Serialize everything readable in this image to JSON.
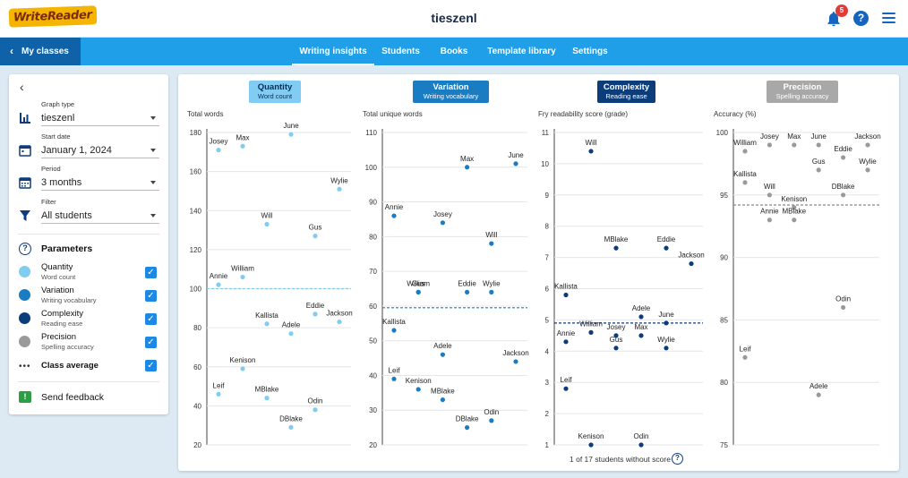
{
  "app": {
    "logo_text": "WriteReader",
    "class_title": "tieszenl",
    "notification_count": "5"
  },
  "nav": {
    "back_label": "My classes",
    "tabs": [
      "Writing insights",
      "Students",
      "Books",
      "Template library",
      "Settings"
    ],
    "active_tab": "Writing insights"
  },
  "sidebar": {
    "graph_type_label": "Graph type",
    "graph_type_value": "tieszenl",
    "start_date_label": "Start date",
    "start_date_value": "January 1, 2024",
    "period_label": "Period",
    "period_value": "3 months",
    "filter_label": "Filter",
    "filter_value": "All students",
    "parameters_title": "Parameters",
    "parameters": [
      {
        "name": "Quantity",
        "sub": "Word count",
        "color": "#80ccf2",
        "checked": true
      },
      {
        "name": "Variation",
        "sub": "Writing vocabulary",
        "color": "#1a7cc2",
        "checked": true
      },
      {
        "name": "Complexity",
        "sub": "Reading ease",
        "color": "#0c3c7a",
        "checked": true
      },
      {
        "name": "Precision",
        "sub": "Spelling accuracy",
        "color": "#9a9a9a",
        "checked": true
      }
    ],
    "class_average_label": "Class average",
    "feedback_label": "Send feedback"
  },
  "metrics": [
    {
      "title": "Quantity",
      "sub": "Word count",
      "bg": "#80ccf2",
      "fg": "#0c2e55"
    },
    {
      "title": "Variation",
      "sub": "Writing vocabulary",
      "bg": "#1a7cc2",
      "fg": "#ffffff"
    },
    {
      "title": "Complexity",
      "sub": "Reading ease",
      "bg": "#0c3c7a",
      "fg": "#ffffff"
    },
    {
      "title": "Precision",
      "sub": "Spelling accuracy",
      "bg": "#a8a8a8",
      "fg": "#ffffff"
    }
  ],
  "chart_data": [
    {
      "type": "scatter",
      "title": "Quantity",
      "ylabel": "Total words",
      "ylim": [
        20,
        180
      ],
      "yticks": [
        20,
        40,
        60,
        80,
        100,
        120,
        140,
        160,
        180
      ],
      "class_average": 100,
      "color": "#80ccf2",
      "avg_color": "#80ccf2",
      "points": [
        {
          "name": "Josey",
          "x": 1,
          "y": 171
        },
        {
          "name": "Max",
          "x": 2,
          "y": 173
        },
        {
          "name": "June",
          "x": 4,
          "y": 179
        },
        {
          "name": "Wylie",
          "x": 6,
          "y": 151
        },
        {
          "name": "Will",
          "x": 3,
          "y": 133
        },
        {
          "name": "Gus",
          "x": 5,
          "y": 127
        },
        {
          "name": "Annie",
          "x": 1,
          "y": 102
        },
        {
          "name": "William",
          "x": 2,
          "y": 106
        },
        {
          "name": "Eddie",
          "x": 5,
          "y": 87
        },
        {
          "name": "Jackson",
          "x": 6,
          "y": 83
        },
        {
          "name": "Kallista",
          "x": 3,
          "y": 82
        },
        {
          "name": "Adele",
          "x": 4,
          "y": 77
        },
        {
          "name": "Kenison",
          "x": 2,
          "y": 59
        },
        {
          "name": "Leif",
          "x": 1,
          "y": 46
        },
        {
          "name": "MBlake",
          "x": 3,
          "y": 44
        },
        {
          "name": "Odin",
          "x": 5,
          "y": 38
        },
        {
          "name": "DBlake",
          "x": 4,
          "y": 29
        }
      ]
    },
    {
      "type": "scatter",
      "title": "Variation",
      "ylabel": "Total unique words",
      "ylim": [
        20,
        110
      ],
      "yticks": [
        20,
        30,
        40,
        50,
        60,
        70,
        80,
        90,
        100,
        110
      ],
      "class_average": 59.5,
      "color": "#1a7cc2",
      "avg_color": "#1a7cc2",
      "points": [
        {
          "name": "June",
          "x": 6,
          "y": 101
        },
        {
          "name": "Max",
          "x": 4,
          "y": 100
        },
        {
          "name": "Annie",
          "x": 1,
          "y": 86
        },
        {
          "name": "Josey",
          "x": 3,
          "y": 84
        },
        {
          "name": "Will",
          "x": 5,
          "y": 78
        },
        {
          "name": "William",
          "x": 2,
          "y": 64
        },
        {
          "name": "Gus",
          "x": 2,
          "y": 64
        },
        {
          "name": "Eddie",
          "x": 4,
          "y": 64
        },
        {
          "name": "Wylie",
          "x": 5,
          "y": 64
        },
        {
          "name": "Kallista",
          "x": 1,
          "y": 53
        },
        {
          "name": "Adele",
          "x": 3,
          "y": 46
        },
        {
          "name": "Jackson",
          "x": 6,
          "y": 44
        },
        {
          "name": "Leif",
          "x": 1,
          "y": 39
        },
        {
          "name": "Kenison",
          "x": 2,
          "y": 36
        },
        {
          "name": "MBlake",
          "x": 3,
          "y": 33
        },
        {
          "name": "Odin",
          "x": 5,
          "y": 27
        },
        {
          "name": "DBlake",
          "x": 4,
          "y": 25
        }
      ]
    },
    {
      "type": "scatter",
      "title": "Complexity",
      "ylabel": "Fry readability score (grade)",
      "ylim": [
        1,
        11
      ],
      "yticks": [
        1,
        2,
        3,
        4,
        5,
        6,
        7,
        8,
        9,
        10,
        11
      ],
      "class_average": 4.9,
      "color": "#0c3c7a",
      "avg_color": "#0c3c7a",
      "footnote": "1 of 17 students without score",
      "points": [
        {
          "name": "Will",
          "x": 2,
          "y": 10.4
        },
        {
          "name": "MBlake",
          "x": 3,
          "y": 7.3
        },
        {
          "name": "Eddie",
          "x": 5,
          "y": 7.3
        },
        {
          "name": "Jackson",
          "x": 6,
          "y": 6.8
        },
        {
          "name": "Kallista",
          "x": 1,
          "y": 5.8
        },
        {
          "name": "Adele",
          "x": 4,
          "y": 5.1
        },
        {
          "name": "June",
          "x": 5,
          "y": 4.9
        },
        {
          "name": "William",
          "x": 2,
          "y": 4.6
        },
        {
          "name": "Josey",
          "x": 3,
          "y": 4.5
        },
        {
          "name": "Max",
          "x": 4,
          "y": 4.5
        },
        {
          "name": "Annie",
          "x": 1,
          "y": 4.3
        },
        {
          "name": "Gus",
          "x": 3,
          "y": 4.1
        },
        {
          "name": "Wylie",
          "x": 5,
          "y": 4.1
        },
        {
          "name": "Leif",
          "x": 1,
          "y": 2.8
        },
        {
          "name": "Kenison",
          "x": 2,
          "y": 1
        },
        {
          "name": "Odin",
          "x": 4,
          "y": 1
        }
      ]
    },
    {
      "type": "scatter",
      "title": "Precision",
      "ylabel": "Accuracy (%)",
      "ylim": [
        75,
        100
      ],
      "yticks": [
        75,
        80,
        85,
        90,
        95,
        100
      ],
      "class_average": 94.2,
      "color": "#9a9a9a",
      "avg_color": "#888888",
      "points": [
        {
          "name": "Josey",
          "x": 2,
          "y": 99
        },
        {
          "name": "Max",
          "x": 3,
          "y": 99
        },
        {
          "name": "June",
          "x": 4,
          "y": 99
        },
        {
          "name": "Jackson",
          "x": 6,
          "y": 99
        },
        {
          "name": "William",
          "x": 1,
          "y": 98.5
        },
        {
          "name": "Eddie",
          "x": 5,
          "y": 98
        },
        {
          "name": "Gus",
          "x": 4,
          "y": 97
        },
        {
          "name": "Wylie",
          "x": 6,
          "y": 97
        },
        {
          "name": "Kallista",
          "x": 1,
          "y": 96
        },
        {
          "name": "Will",
          "x": 2,
          "y": 95
        },
        {
          "name": "DBlake",
          "x": 5,
          "y": 95
        },
        {
          "name": "Kenison",
          "x": 3,
          "y": 94
        },
        {
          "name": "Annie",
          "x": 2,
          "y": 93
        },
        {
          "name": "MBlake",
          "x": 3,
          "y": 93
        },
        {
          "name": "Odin",
          "x": 5,
          "y": 86
        },
        {
          "name": "Leif",
          "x": 1,
          "y": 82
        },
        {
          "name": "Adele",
          "x": 4,
          "y": 79
        }
      ]
    }
  ]
}
